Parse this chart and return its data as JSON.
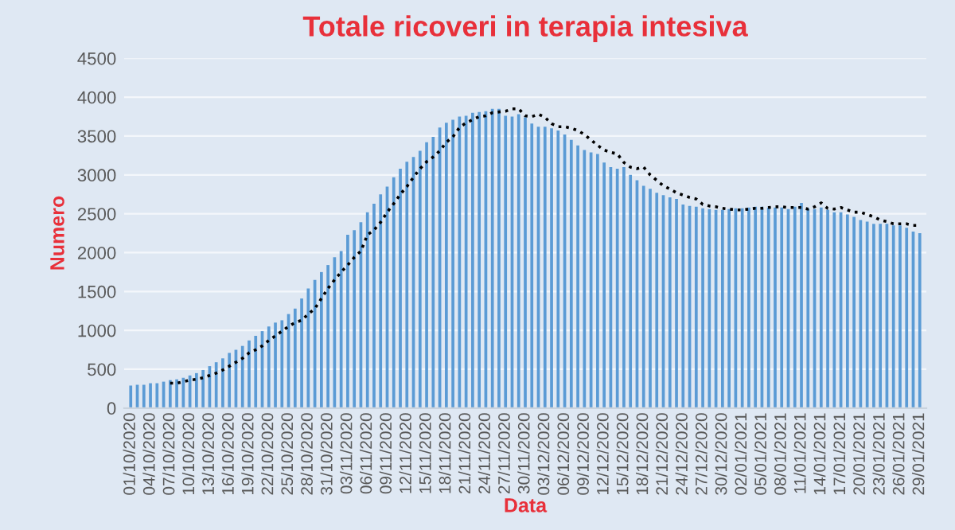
{
  "chart_data": {
    "type": "bar",
    "title": "Totale ricoveri in terapia intesiva",
    "xlabel": "Data",
    "ylabel": "Numero",
    "categories": [
      "01/10/2020",
      null,
      null,
      "04/10/2020",
      null,
      null,
      "07/10/2020",
      null,
      null,
      "10/10/2020",
      null,
      null,
      "13/10/2020",
      null,
      null,
      "16/10/2020",
      null,
      null,
      "19/10/2020",
      null,
      null,
      "22/10/2020",
      null,
      null,
      "25/10/2020",
      null,
      null,
      "28/10/2020",
      null,
      null,
      "31/10/2020",
      null,
      null,
      "03/11/2020",
      null,
      null,
      "06/11/2020",
      null,
      null,
      "09/11/2020",
      null,
      null,
      "12/11/2020",
      null,
      null,
      "15/11/2020",
      null,
      null,
      "18/11/2020",
      null,
      null,
      "21/11/2020",
      null,
      null,
      "24/11/2020",
      null,
      null,
      "27/11/2020",
      null,
      null,
      "30/11/2020",
      null,
      null,
      "03/12/2020",
      null,
      null,
      "06/12/2020",
      null,
      null,
      "09/12/2020",
      null,
      null,
      "12/12/2020",
      null,
      null,
      "15/12/2020",
      null,
      null,
      "18/12/2020",
      null,
      null,
      "21/12/2020",
      null,
      null,
      "24/12/2020",
      null,
      null,
      "27/12/2020",
      null,
      null,
      "30/12/2020",
      null,
      null,
      "02/01/2021",
      null,
      null,
      "05/01/2021",
      null,
      null,
      "08/01/2021",
      null,
      null,
      "11/01/2021",
      null,
      null,
      "14/01/2021",
      null,
      null,
      "17/01/2021",
      null,
      null,
      "20/01/2021",
      null,
      null,
      "23/01/2021",
      null,
      null,
      "26/01/2021",
      null,
      null,
      "29/01/2021"
    ],
    "series": [
      {
        "color": "#5b9bd5",
        "values": [
          290,
          300,
          300,
          320,
          320,
          340,
          360,
          370,
          390,
          420,
          450,
          490,
          540,
          590,
          640,
          710,
          750,
          800,
          870,
          930,
          990,
          1050,
          1100,
          1130,
          1210,
          1280,
          1410,
          1540,
          1650,
          1750,
          1840,
          1940,
          2020,
          2230,
          2290,
          2390,
          2520,
          2630,
          2750,
          2850,
          2970,
          3080,
          3170,
          3230,
          3310,
          3420,
          3490,
          3610,
          3670,
          3710,
          3750,
          3760,
          3800,
          3810,
          3820,
          3850,
          3850,
          3760,
          3750,
          3780,
          3740,
          3660,
          3620,
          3620,
          3600,
          3570,
          3520,
          3450,
          3380,
          3320,
          3290,
          3270,
          3160,
          3100,
          3080,
          3100,
          3000,
          2930,
          2860,
          2820,
          2770,
          2740,
          2710,
          2690,
          2620,
          2600,
          2590,
          2570,
          2560,
          2550,
          2550,
          2560,
          2570,
          2570,
          2580,
          2590,
          2590,
          2580,
          2580,
          2580,
          2560,
          2590,
          2640,
          2570,
          2560,
          2580,
          2550,
          2520,
          2520,
          2490,
          2460,
          2420,
          2400,
          2370,
          2370,
          2370,
          2350,
          2350,
          2320,
          2270,
          2250
        ]
      },
      {
        "type": "line",
        "color": "#000000",
        "line_style": "dotted",
        "values": [
          null,
          null,
          null,
          null,
          null,
          null,
          320,
          320,
          340,
          360,
          370,
          390,
          420,
          450,
          490,
          540,
          590,
          640,
          710,
          750,
          800,
          870,
          930,
          990,
          1050,
          1100,
          1130,
          1210,
          1280,
          1410,
          1540,
          1650,
          1750,
          1840,
          1940,
          2020,
          2230,
          2290,
          2390,
          2520,
          2630,
          2750,
          2850,
          2970,
          3080,
          3170,
          3230,
          3310,
          3420,
          3490,
          3610,
          3670,
          3710,
          3750,
          3760,
          3800,
          3810,
          3820,
          3850,
          3850,
          3760,
          3750,
          3780,
          3740,
          3660,
          3620,
          3620,
          3600,
          3570,
          3520,
          3450,
          3380,
          3320,
          3290,
          3270,
          3160,
          3100,
          3080,
          3100,
          3000,
          2930,
          2860,
          2820,
          2770,
          2740,
          2710,
          2690,
          2620,
          2600,
          2590,
          2570,
          2560,
          2550,
          2550,
          2560,
          2570,
          2570,
          2580,
          2590,
          2590,
          2580,
          2580,
          2580,
          2560,
          2590,
          2640,
          2570,
          2560,
          2580,
          2550,
          2520,
          2520,
          2490,
          2460,
          2420,
          2400,
          2370,
          2370,
          2370,
          2350,
          2350
        ]
      }
    ],
    "ylim": [
      0,
      4500
    ],
    "yticks": [
      0,
      500,
      1000,
      1500,
      2000,
      2500,
      3000,
      3500,
      4000,
      4500
    ],
    "grid": "y",
    "legend": false
  }
}
